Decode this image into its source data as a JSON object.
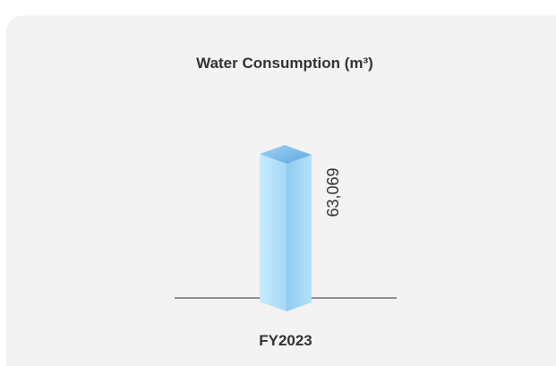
{
  "chart_data": {
    "type": "bar3d",
    "title": "Water Consumption (m³)",
    "categories": [
      "FY2023"
    ],
    "values": [
      63069
    ],
    "value_labels": [
      "63,069"
    ],
    "color": "#a8dcf8"
  }
}
